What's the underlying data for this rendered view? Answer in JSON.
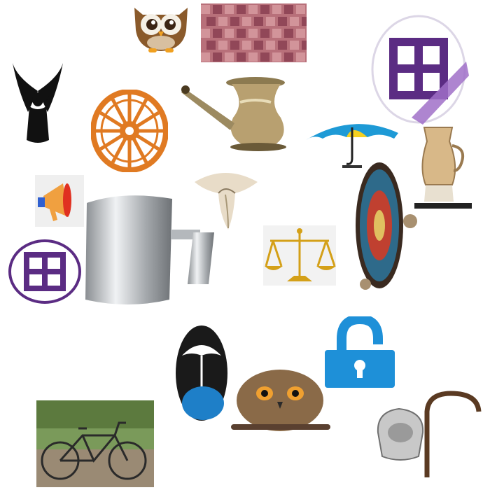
{
  "canvas": {
    "background": "#ffffff"
  },
  "items": [
    {
      "name": "cartoon-owl",
      "colors": {
        "body": "#8a5a2b",
        "face": "#f5f0e6",
        "beak": "#f0a020"
      }
    },
    {
      "name": "woven-textile",
      "colors": {
        "base": "#b8707a",
        "pattern": "#8a3f52"
      }
    },
    {
      "name": "swastika-circle-crossed",
      "colors": {
        "symbol": "#5b2c83",
        "slash": "#a070c8"
      }
    },
    {
      "name": "eagle-line-drawing",
      "colors": {
        "ink": "#111111"
      }
    },
    {
      "name": "dharma-wheel",
      "colors": {
        "wheel": "#e07a22"
      }
    },
    {
      "name": "brass-water-pot",
      "colors": {
        "metal": "#b8a070"
      }
    },
    {
      "name": "umbrella",
      "colors": {
        "canopy": "#1e9ad6",
        "accent": "#f5d020"
      }
    },
    {
      "name": "glass-pitcher",
      "colors": {
        "liquid": "#d8b888"
      }
    },
    {
      "name": "megaphone",
      "colors": {
        "body": "#f0a040",
        "bell": "#e03020"
      }
    },
    {
      "name": "conch-shell",
      "colors": {
        "shell": "#e8dcc8"
      }
    },
    {
      "name": "ornate-round-shield",
      "colors": {
        "pattern": "#2e6a8a",
        "accent": "#c04030"
      }
    },
    {
      "name": "steel-pitcher",
      "colors": {
        "metal": "#b4b8bc"
      }
    },
    {
      "name": "swastika-circle",
      "colors": {
        "symbol": "#5b2c83"
      }
    },
    {
      "name": "balance-scale",
      "colors": {
        "gold": "#d4a018"
      }
    },
    {
      "name": "umbrella-logo",
      "colors": {
        "dark": "#1a1a1a",
        "blue": "#1e7fc8"
      }
    },
    {
      "name": "unlocked-padlock",
      "colors": {
        "lock": "#1e90d8"
      }
    },
    {
      "name": "bicycle-photo",
      "colors": {
        "greenery": "#5c7a3e",
        "frame": "#2a2a2a"
      }
    },
    {
      "name": "owl-on-branch",
      "colors": {
        "feathers": "#8a6a48",
        "branch": "#5a4030"
      }
    },
    {
      "name": "walking-cane-and-bag",
      "colors": {
        "cane": "#5a3a22",
        "bag": "#c8c8c8"
      }
    }
  ]
}
